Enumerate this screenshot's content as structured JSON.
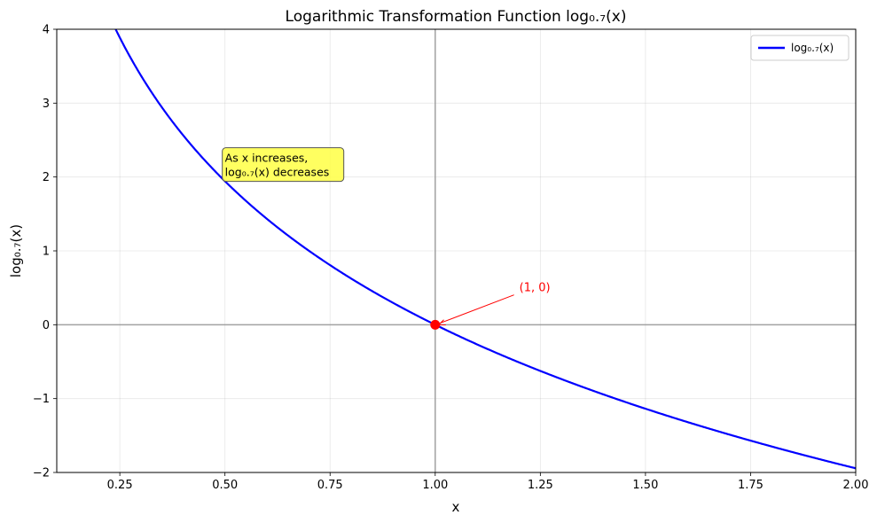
{
  "chart_data": {
    "type": "line",
    "title": "Logarithmic Transformation Function log₀.₇(x)",
    "xlabel": "x",
    "ylabel": "log₀.₇(x)",
    "xlim": [
      0.1,
      2.0
    ],
    "ylim": [
      -2,
      4
    ],
    "x_ticks": [
      0.25,
      0.5,
      0.75,
      1.0,
      1.25,
      1.5,
      1.75,
      2.0
    ],
    "x_tick_labels": [
      "0.25",
      "0.50",
      "0.75",
      "1.00",
      "1.25",
      "1.50",
      "1.75",
      "2.00"
    ],
    "y_ticks": [
      -2,
      -1,
      0,
      1,
      2,
      3,
      4
    ],
    "y_tick_labels": [
      "−2",
      "−1",
      "0",
      "1",
      "2",
      "3",
      "4"
    ],
    "grid": true,
    "legend_position": "top-right",
    "series": [
      {
        "name": "log₀.₇(x)",
        "color": "#0000ff",
        "function": "log base 0.7 of x",
        "base": 0.7,
        "x_range": [
          0.1,
          2.0
        ]
      }
    ],
    "reference_lines": {
      "horizontal_y": 0,
      "vertical_x": 1,
      "color": "#999999"
    },
    "highlight_point": {
      "x": 1,
      "y": 0,
      "label": "(1, 0)",
      "label_x": 1.2,
      "label_y": 0.5,
      "color": "#ff0000"
    },
    "annotation": {
      "text_lines": [
        "As x increases,",
        "log₀.₇(x) decreases"
      ],
      "x": 0.5,
      "y": 2.0,
      "background": "#ffff44"
    }
  }
}
